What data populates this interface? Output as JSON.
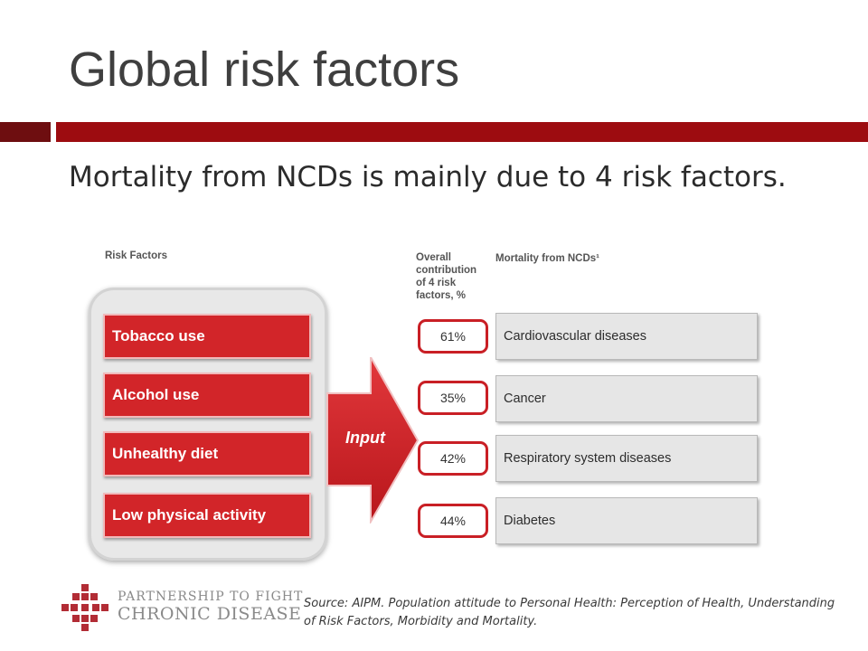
{
  "slide": {
    "title": "Global risk factors",
    "subtitle": "Mortality from NCDs is mainly due to 4 risk factors."
  },
  "diagram": {
    "risk_factors_header": "Risk Factors",
    "contribution_header": "Overall contribution of 4 risk factors, %",
    "mortality_header": "Mortality from NCDs¹",
    "arrow_label": "Input",
    "risk_factors": [
      "Tobacco use",
      "Alcohol use",
      "Unhealthy diet",
      "Low physical activity"
    ],
    "outcomes": [
      {
        "percent": "61%",
        "disease": "Cardiovascular diseases"
      },
      {
        "percent": "35%",
        "disease": "Cancer"
      },
      {
        "percent": "42%",
        "disease": "Respiratory system diseases"
      },
      {
        "percent": "44%",
        "disease": "Diabetes"
      }
    ]
  },
  "footer": {
    "logo_line1": "PARTNERSHIP TO FIGHT",
    "logo_line2": "CHRONIC DISEASE",
    "source": "Source: AIPM. Population attitude to Personal Health: Perception of Health, Understanding of Risk Factors, Morbidity and Mortality."
  },
  "colors": {
    "accent_red": "#9d0c10",
    "accent_dark": "#6e0e10",
    "risk_box": "#d22529",
    "outcome_box": "#e6e6e6"
  }
}
